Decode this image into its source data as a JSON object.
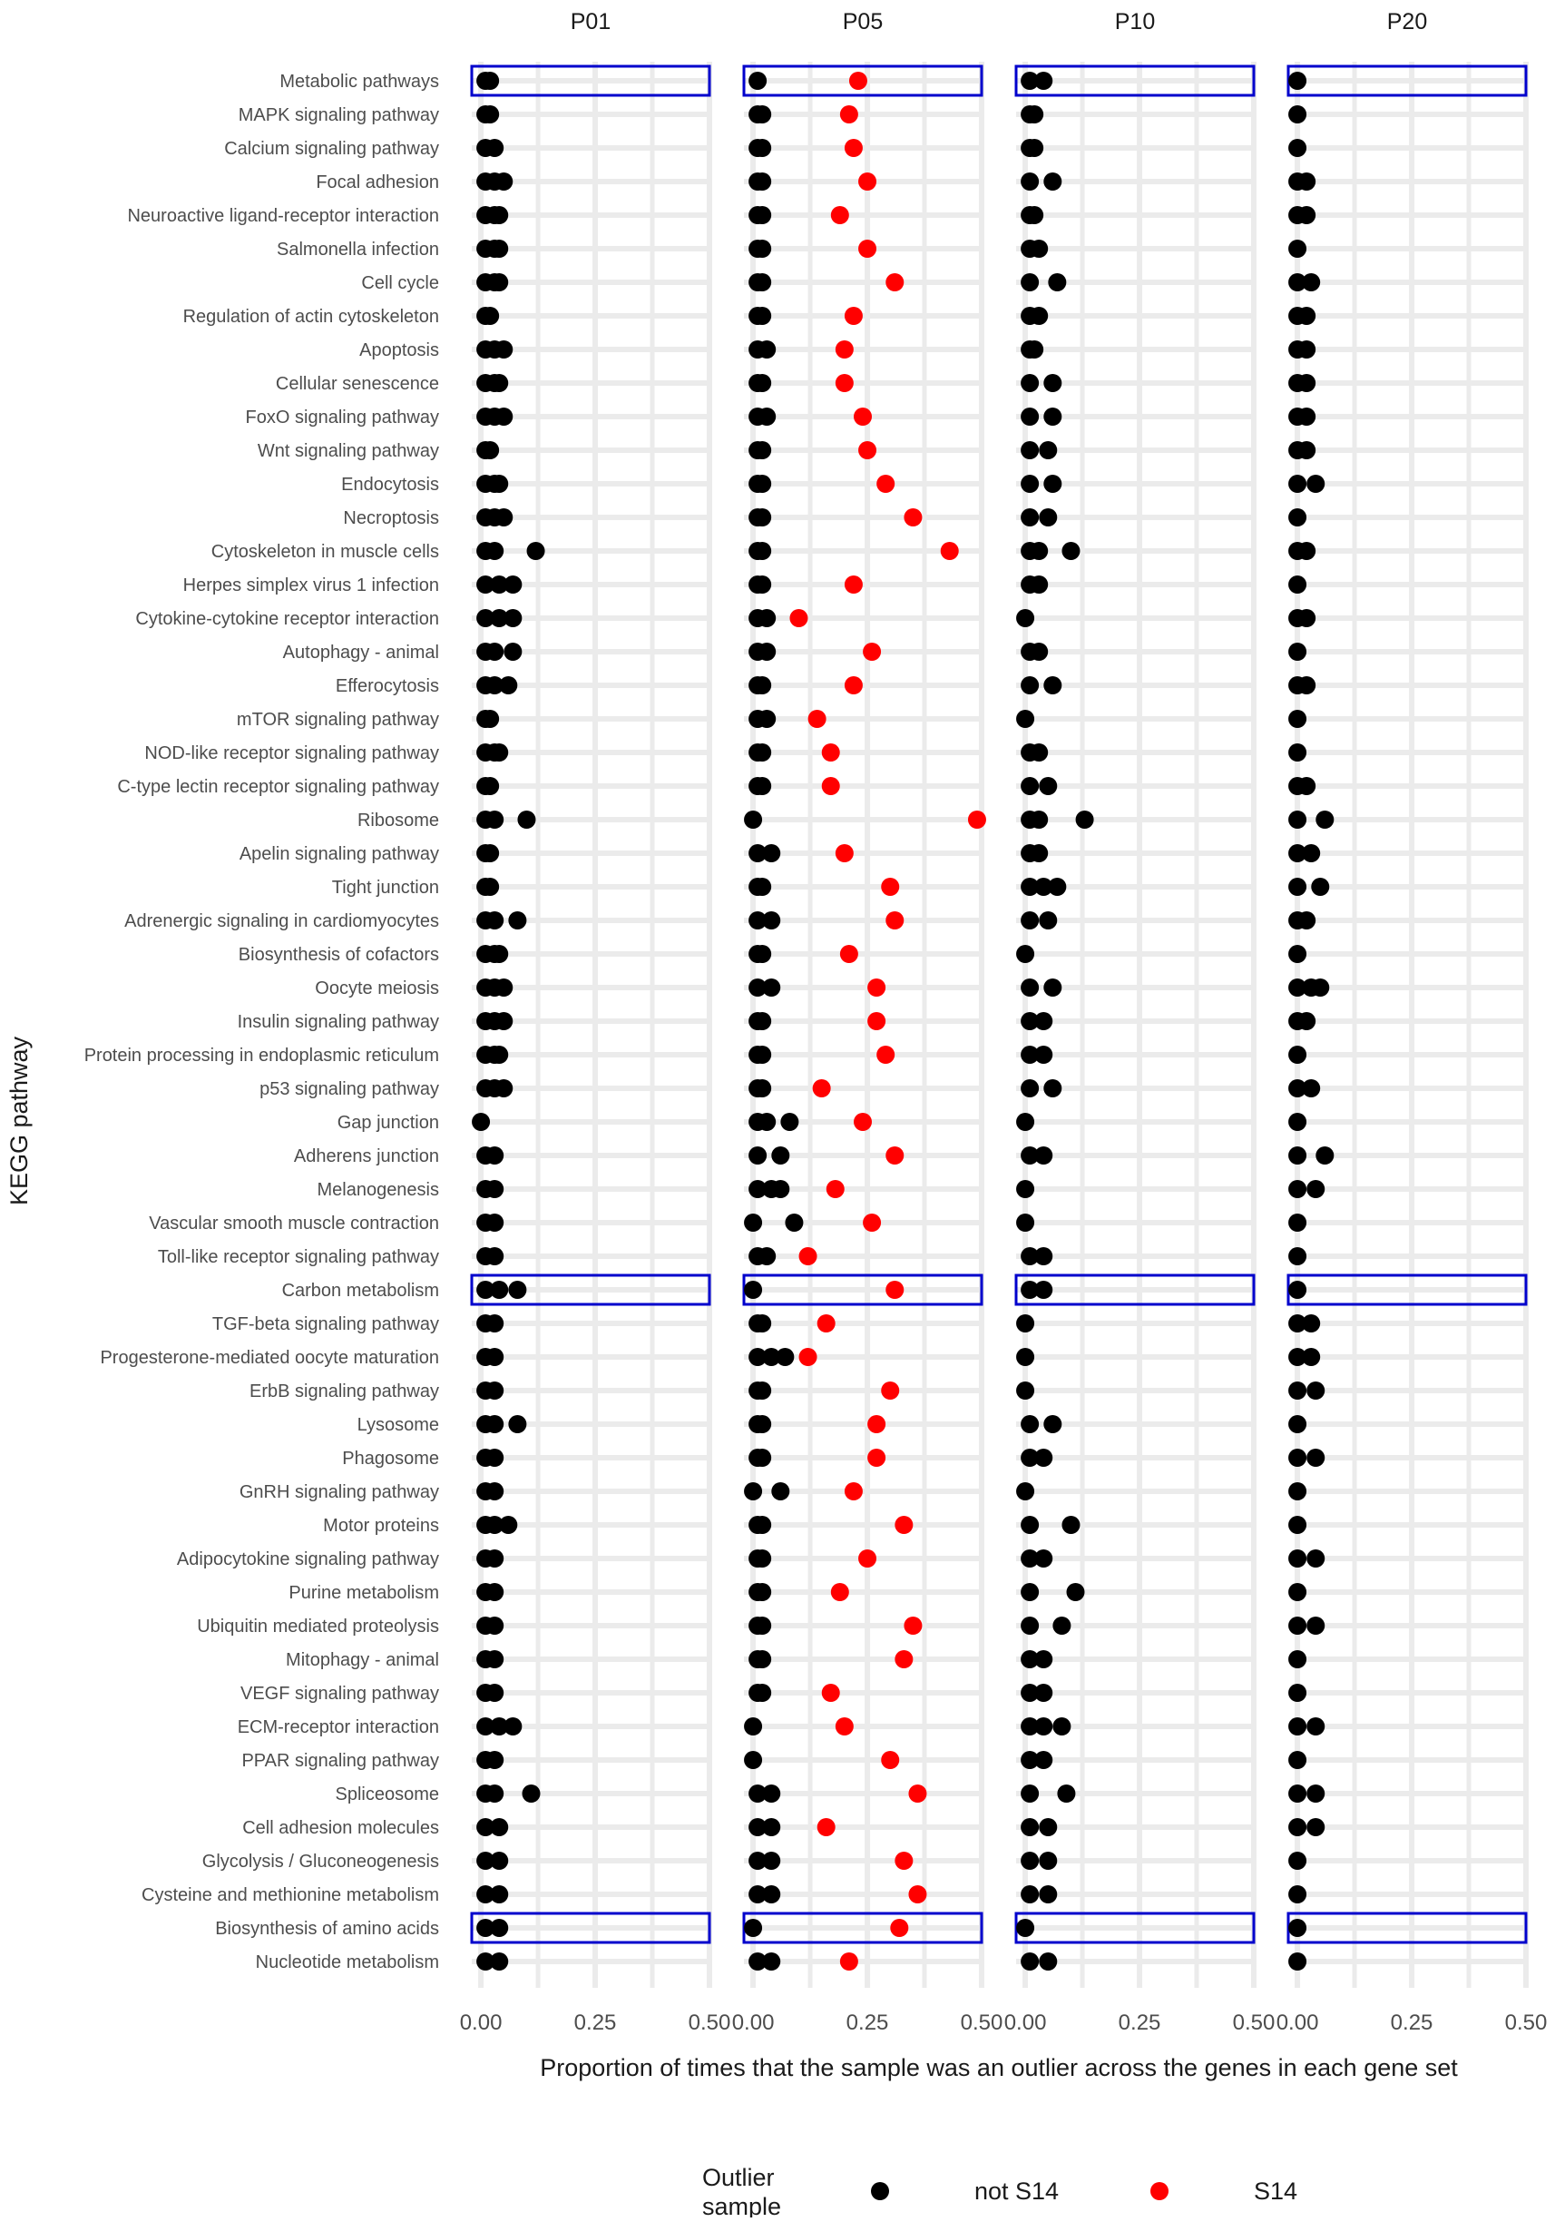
{
  "chart_data": {
    "type": "scatter",
    "xlabel": "Proportion of times that the sample was an outlier across the genes in each gene set",
    "ylabel": "KEGG pathway",
    "xlim": [
      -0.02,
      0.5
    ],
    "xticks": [
      0.0,
      0.25,
      0.5
    ],
    "xtick_labels": [
      "0.00",
      "0.25",
      "0.50"
    ],
    "grid": true,
    "legend": {
      "title_lines": [
        "Outlier",
        "sample"
      ],
      "placement": "bottom",
      "entries": [
        {
          "label": "not S14",
          "color": "#000000"
        },
        {
          "label": "S14",
          "color": "#ff0000"
        }
      ]
    },
    "highlight_color": "#0000cc",
    "highlighted_pathways": [
      "Metabolic pathways",
      "Carbon metabolism",
      "Biosynthesis of amino acids"
    ],
    "panels": [
      {
        "name": "P01",
        "not_s14": [
          [
            0.01,
            0.02
          ],
          [
            0.01,
            0.02
          ],
          [
            0.01,
            0.03
          ],
          [
            0.01,
            0.03,
            0.05
          ],
          [
            0.01,
            0.03,
            0.04
          ],
          [
            0.01,
            0.03,
            0.04
          ],
          [
            0.01,
            0.03,
            0.04
          ],
          [
            0.01,
            0.02
          ],
          [
            0.01,
            0.03,
            0.05
          ],
          [
            0.01,
            0.03,
            0.04
          ],
          [
            0.01,
            0.03,
            0.05
          ],
          [
            0.01,
            0.02
          ],
          [
            0.01,
            0.03,
            0.04
          ],
          [
            0.01,
            0.03,
            0.05
          ],
          [
            0.01,
            0.03,
            0.12
          ],
          [
            0.01,
            0.04,
            0.07
          ],
          [
            0.01,
            0.04,
            0.07
          ],
          [
            0.01,
            0.03,
            0.07
          ],
          [
            0.01,
            0.03,
            0.06
          ],
          [
            0.01,
            0.02
          ],
          [
            0.01,
            0.03,
            0.04
          ],
          [
            0.01,
            0.02
          ],
          [
            0.01,
            0.03,
            0.1
          ],
          [
            0.01,
            0.02
          ],
          [
            0.01,
            0.02
          ],
          [
            0.01,
            0.03,
            0.08
          ],
          [
            0.01,
            0.03,
            0.04
          ],
          [
            0.01,
            0.03,
            0.05
          ],
          [
            0.01,
            0.03,
            0.05
          ],
          [
            0.01,
            0.03,
            0.04
          ],
          [
            0.01,
            0.03,
            0.05
          ],
          [
            0.0
          ],
          [
            0.01,
            0.03
          ],
          [
            0.01,
            0.03
          ],
          [
            0.01,
            0.03
          ],
          [
            0.01,
            0.03
          ],
          [
            0.01,
            0.04,
            0.08
          ],
          [
            0.01,
            0.03
          ],
          [
            0.01,
            0.03
          ],
          [
            0.01,
            0.03
          ],
          [
            0.01,
            0.03,
            0.08
          ],
          [
            0.01,
            0.03
          ],
          [
            0.01,
            0.03
          ],
          [
            0.01,
            0.03,
            0.06
          ],
          [
            0.01,
            0.03
          ],
          [
            0.01,
            0.03
          ],
          [
            0.01,
            0.03
          ],
          [
            0.01,
            0.03
          ],
          [
            0.01,
            0.03
          ],
          [
            0.01,
            0.04,
            0.07
          ],
          [
            0.01,
            0.03
          ],
          [
            0.01,
            0.03,
            0.11
          ],
          [
            0.01,
            0.04
          ],
          [
            0.01,
            0.04
          ],
          [
            0.01,
            0.04
          ],
          [
            0.01,
            0.04
          ],
          [
            0.01,
            0.04
          ]
        ],
        "s14": []
      },
      {
        "name": "P05",
        "not_s14": [
          [
            0.01
          ],
          [
            0.01,
            0.02
          ],
          [
            0.01,
            0.02
          ],
          [
            0.01,
            0.02
          ],
          [
            0.01,
            0.02
          ],
          [
            0.01,
            0.02
          ],
          [
            0.01,
            0.02
          ],
          [
            0.01,
            0.02
          ],
          [
            0.01,
            0.03
          ],
          [
            0.01,
            0.02
          ],
          [
            0.01,
            0.03
          ],
          [
            0.01,
            0.02
          ],
          [
            0.01,
            0.02
          ],
          [
            0.01,
            0.02
          ],
          [
            0.01,
            0.02
          ],
          [
            0.01,
            0.02
          ],
          [
            0.01,
            0.03
          ],
          [
            0.01,
            0.03
          ],
          [
            0.01,
            0.02
          ],
          [
            0.01,
            0.03
          ],
          [
            0.01,
            0.02
          ],
          [
            0.01,
            0.02
          ],
          [
            0.0
          ],
          [
            0.01,
            0.04
          ],
          [
            0.01,
            0.02
          ],
          [
            0.01,
            0.04
          ],
          [
            0.01,
            0.02
          ],
          [
            0.01,
            0.04
          ],
          [
            0.01,
            0.02
          ],
          [
            0.01,
            0.02
          ],
          [
            0.01,
            0.02
          ],
          [
            0.01,
            0.03,
            0.08
          ],
          [
            0.01,
            0.06
          ],
          [
            0.01,
            0.04,
            0.06
          ],
          [
            0.0,
            0.09
          ],
          [
            0.01,
            0.03
          ],
          [
            0.0
          ],
          [
            0.01,
            0.02
          ],
          [
            0.01,
            0.04,
            0.07
          ],
          [
            0.01,
            0.02
          ],
          [
            0.01,
            0.02
          ],
          [
            0.01,
            0.02
          ],
          [
            0.0,
            0.06
          ],
          [
            0.01,
            0.02
          ],
          [
            0.01,
            0.02
          ],
          [
            0.01,
            0.02
          ],
          [
            0.01,
            0.02
          ],
          [
            0.01,
            0.02
          ],
          [
            0.01,
            0.02
          ],
          [
            0.0
          ],
          [
            0.0
          ],
          [
            0.01,
            0.04
          ],
          [
            0.01,
            0.04
          ],
          [
            0.01,
            0.04
          ],
          [
            0.01,
            0.04
          ],
          [
            0.0
          ],
          [
            0.01,
            0.04
          ]
        ],
        "s14": [
          0.23,
          0.21,
          0.22,
          0.25,
          0.19,
          0.25,
          0.31,
          0.22,
          0.2,
          0.2,
          0.24,
          0.25,
          0.29,
          0.35,
          0.43,
          0.22,
          0.1,
          0.26,
          0.22,
          0.14,
          0.17,
          0.17,
          0.49,
          0.2,
          0.3,
          0.31,
          0.21,
          0.27,
          0.27,
          0.29,
          0.15,
          0.24,
          0.31,
          0.18,
          0.26,
          0.12,
          0.31,
          0.16,
          0.12,
          0.3,
          0.27,
          0.27,
          0.22,
          0.33,
          0.25,
          0.19,
          0.35,
          0.33,
          0.17,
          0.2,
          0.3,
          0.36,
          0.16,
          0.33,
          0.36,
          0.32,
          0.21
        ]
      },
      {
        "name": "P10",
        "not_s14": [
          [
            0.01,
            0.04
          ],
          [
            0.01,
            0.02
          ],
          [
            0.01,
            0.02
          ],
          [
            0.01,
            0.06
          ],
          [
            0.01,
            0.02
          ],
          [
            0.01,
            0.03
          ],
          [
            0.01,
            0.07
          ],
          [
            0.01,
            0.03
          ],
          [
            0.01,
            0.02
          ],
          [
            0.01,
            0.06
          ],
          [
            0.01,
            0.06
          ],
          [
            0.01,
            0.05
          ],
          [
            0.01,
            0.06
          ],
          [
            0.01,
            0.05
          ],
          [
            0.01,
            0.03,
            0.1
          ],
          [
            0.01,
            0.03
          ],
          [
            0.0
          ],
          [
            0.01,
            0.03
          ],
          [
            0.01,
            0.06
          ],
          [
            0.0
          ],
          [
            0.01,
            0.03
          ],
          [
            0.01,
            0.05
          ],
          [
            0.01,
            0.03,
            0.13
          ],
          [
            0.01,
            0.03
          ],
          [
            0.01,
            0.04,
            0.07
          ],
          [
            0.01,
            0.05
          ],
          [
            0.0
          ],
          [
            0.01,
            0.06
          ],
          [
            0.01,
            0.04
          ],
          [
            0.01,
            0.04
          ],
          [
            0.01,
            0.06
          ],
          [
            0.0
          ],
          [
            0.01,
            0.04
          ],
          [
            0.0
          ],
          [
            0.0
          ],
          [
            0.01,
            0.04
          ],
          [
            0.01,
            0.04
          ],
          [
            0.0
          ],
          [
            0.0
          ],
          [
            0.0
          ],
          [
            0.01,
            0.06
          ],
          [
            0.01,
            0.04
          ],
          [
            0.0
          ],
          [
            0.01,
            0.1
          ],
          [
            0.01,
            0.04
          ],
          [
            0.01,
            0.11
          ],
          [
            0.01,
            0.08
          ],
          [
            0.01,
            0.04
          ],
          [
            0.01,
            0.04
          ],
          [
            0.01,
            0.04,
            0.08
          ],
          [
            0.01,
            0.04
          ],
          [
            0.01,
            0.09
          ],
          [
            0.01,
            0.05
          ],
          [
            0.01,
            0.05
          ],
          [
            0.01,
            0.05
          ],
          [
            0.0
          ],
          [
            0.01,
            0.05
          ]
        ],
        "s14": []
      },
      {
        "name": "P20",
        "not_s14": [
          [
            0.0
          ],
          [
            0.0
          ],
          [
            0.0
          ],
          [
            0.0,
            0.02
          ],
          [
            0.0,
            0.02
          ],
          [
            0.0
          ],
          [
            0.0,
            0.03
          ],
          [
            0.0,
            0.02
          ],
          [
            0.0,
            0.02
          ],
          [
            0.0,
            0.02
          ],
          [
            0.0,
            0.02
          ],
          [
            0.0,
            0.02
          ],
          [
            0.0,
            0.04
          ],
          [
            0.0
          ],
          [
            0.0,
            0.02
          ],
          [
            0.0
          ],
          [
            0.0,
            0.02
          ],
          [
            0.0
          ],
          [
            0.0,
            0.02
          ],
          [
            0.0
          ],
          [
            0.0
          ],
          [
            0.0,
            0.02
          ],
          [
            0.0,
            0.06
          ],
          [
            0.0,
            0.03
          ],
          [
            0.0,
            0.05
          ],
          [
            0.0,
            0.02
          ],
          [
            0.0
          ],
          [
            0.0,
            0.03,
            0.05
          ],
          [
            0.0,
            0.02
          ],
          [
            0.0
          ],
          [
            0.0,
            0.03
          ],
          [
            0.0
          ],
          [
            0.0,
            0.06
          ],
          [
            0.0,
            0.04
          ],
          [
            0.0
          ],
          [
            0.0
          ],
          [
            0.0
          ],
          [
            0.0,
            0.03
          ],
          [
            0.0,
            0.03
          ],
          [
            0.0,
            0.04
          ],
          [
            0.0
          ],
          [
            0.0,
            0.04
          ],
          [
            0.0
          ],
          [
            0.0
          ],
          [
            0.0,
            0.04
          ],
          [
            0.0
          ],
          [
            0.0,
            0.04
          ],
          [
            0.0
          ],
          [
            0.0
          ],
          [
            0.0,
            0.04
          ],
          [
            0.0
          ],
          [
            0.0,
            0.04
          ],
          [
            0.0,
            0.04
          ],
          [
            0.0
          ],
          [
            0.0
          ],
          [
            0.0
          ],
          [
            0.0
          ]
        ],
        "s14": []
      }
    ],
    "pathways": [
      "Metabolic pathways",
      "MAPK signaling pathway",
      "Calcium signaling pathway",
      "Focal adhesion",
      "Neuroactive ligand-receptor interaction",
      "Salmonella infection",
      "Cell cycle",
      "Regulation of actin cytoskeleton",
      "Apoptosis",
      "Cellular senescence",
      "FoxO signaling pathway",
      "Wnt signaling pathway",
      "Endocytosis",
      "Necroptosis",
      "Cytoskeleton in muscle cells",
      "Herpes simplex virus 1 infection",
      "Cytokine-cytokine receptor interaction",
      "Autophagy - animal",
      "Efferocytosis",
      "mTOR signaling pathway",
      "NOD-like receptor signaling pathway",
      "C-type lectin receptor signaling pathway",
      "Ribosome",
      "Apelin signaling pathway",
      "Tight junction",
      "Adrenergic signaling in cardiomyocytes",
      "Biosynthesis of cofactors",
      "Oocyte meiosis",
      "Insulin signaling pathway",
      "Protein processing in endoplasmic reticulum",
      "p53 signaling pathway",
      "Gap junction",
      "Adherens junction",
      "Melanogenesis",
      "Vascular smooth muscle contraction",
      "Toll-like receptor signaling pathway",
      "Carbon metabolism",
      "TGF-beta signaling pathway",
      "Progesterone-mediated oocyte maturation",
      "ErbB signaling pathway",
      "Lysosome",
      "Phagosome",
      "GnRH signaling pathway",
      "Motor proteins",
      "Adipocytokine signaling pathway",
      "Purine metabolism",
      "Ubiquitin mediated proteolysis",
      "Mitophagy - animal",
      "VEGF signaling pathway",
      "ECM-receptor interaction",
      "PPAR signaling pathway",
      "Spliceosome",
      "Cell adhesion molecules",
      "Glycolysis / Gluconeogenesis",
      "Cysteine and methionine metabolism",
      "Biosynthesis of amino acids",
      "Nucleotide metabolism"
    ]
  }
}
